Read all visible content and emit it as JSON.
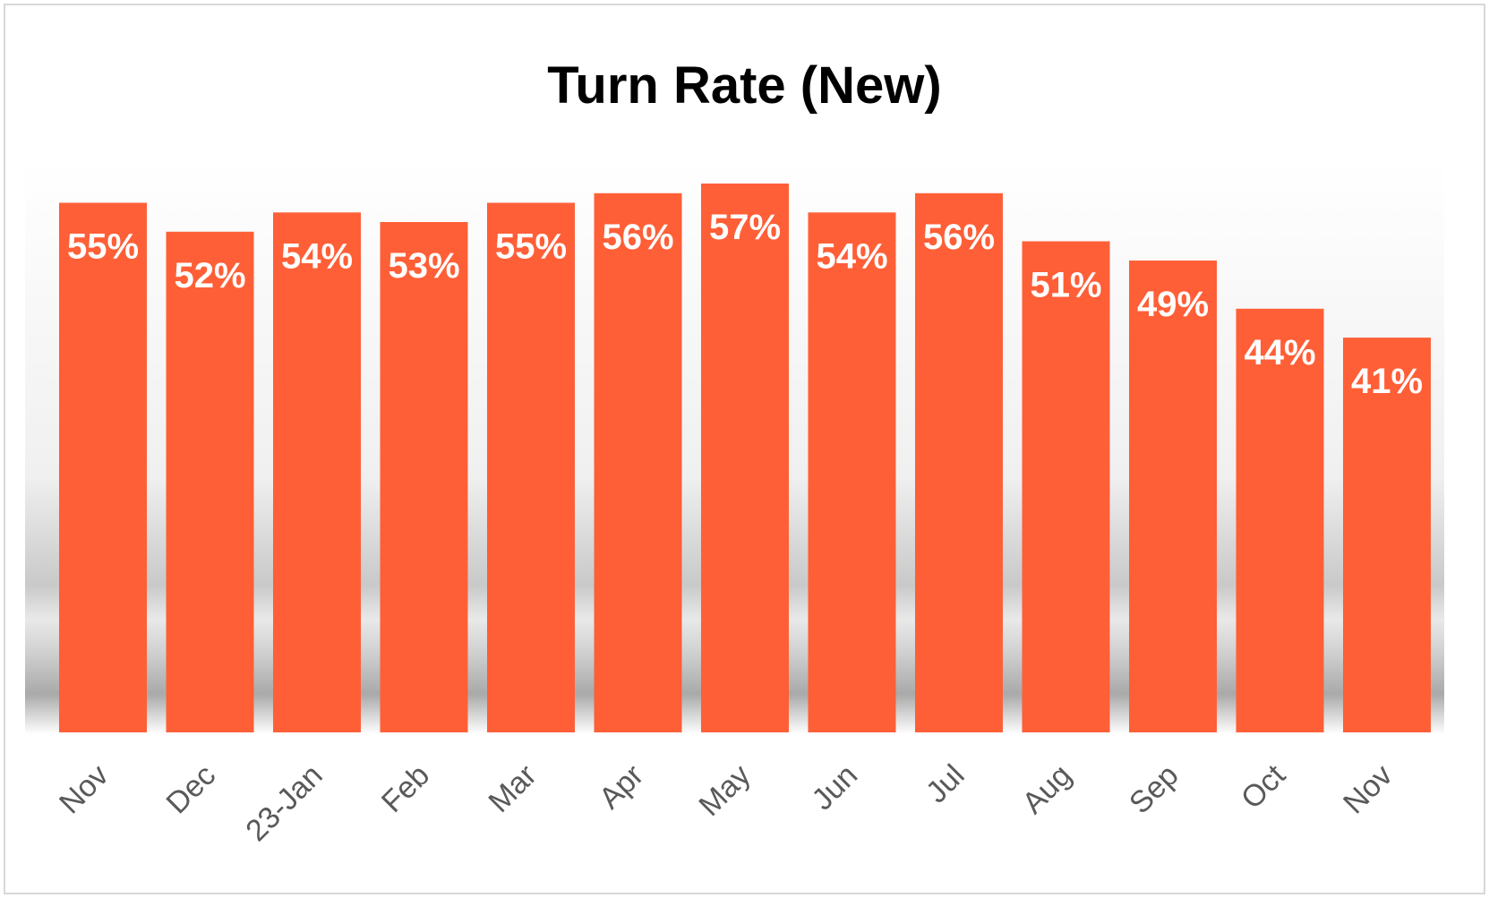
{
  "chart_data": {
    "type": "bar",
    "title": "Turn Rate (New)",
    "xlabel": "",
    "ylabel": "",
    "categories": [
      "Nov",
      "Dec",
      "23-Jan",
      "Feb",
      "Mar",
      "Apr",
      "May",
      "Jun",
      "Jul",
      "Aug",
      "Sep",
      "Oct",
      "Nov"
    ],
    "values": [
      0.55,
      0.52,
      0.54,
      0.53,
      0.55,
      0.56,
      0.57,
      0.54,
      0.56,
      0.51,
      0.49,
      0.44,
      0.41
    ],
    "data_labels": [
      "55%",
      "52%",
      "54%",
      "53%",
      "55%",
      "56%",
      "57%",
      "54%",
      "56%",
      "51%",
      "49%",
      "44%",
      "41%"
    ],
    "ylim": [
      0,
      0.6
    ],
    "grid": false,
    "legend": "none",
    "bar_color": "#ff5f37",
    "data_label_color": "#ffffff"
  }
}
